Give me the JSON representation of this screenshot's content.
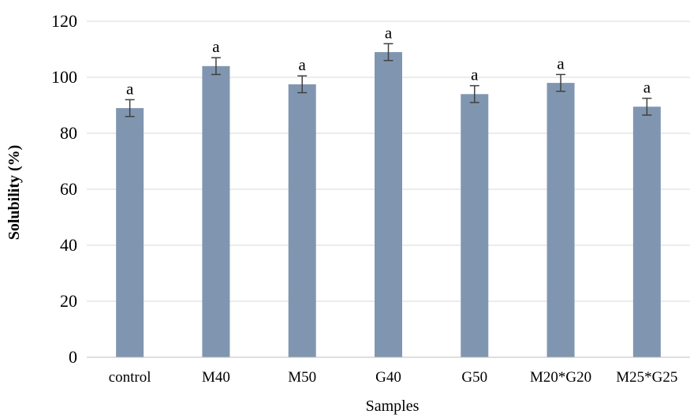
{
  "chart_data": {
    "type": "bar",
    "title": "",
    "xlabel": "Samples",
    "ylabel": "Solubility (%)",
    "ylim": [
      0,
      120
    ],
    "yticks": [
      0,
      20,
      40,
      60,
      80,
      100,
      120
    ],
    "grid": true,
    "legend": "none",
    "categories": [
      "control",
      "M40",
      "M50",
      "G40",
      "G50",
      "M20*G20",
      "M25*G25"
    ],
    "series": [
      {
        "values": [
          89,
          104,
          97.5,
          109,
          94,
          98,
          89.5
        ],
        "errors": [
          3,
          3,
          3,
          3,
          3,
          3,
          3
        ],
        "labels": [
          "a",
          "a",
          "a",
          "a",
          "a",
          "a",
          "a"
        ],
        "color": "#8096b0"
      }
    ]
  }
}
